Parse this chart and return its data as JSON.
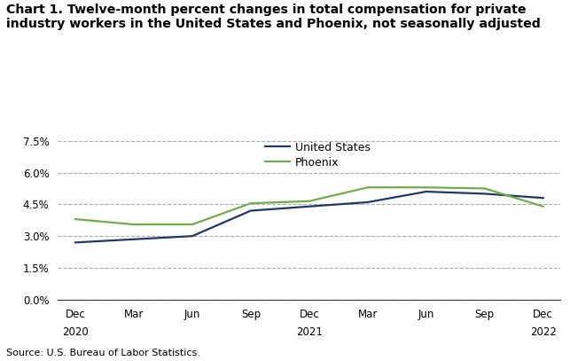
{
  "title": "Chart 1. Twelve-month percent changes in total compensation for private\nindustry workers in the United States and Phoenix, not seasonally adjusted",
  "x_tick_labels": [
    "Dec",
    "Mar",
    "Jun",
    "Sep",
    "Dec",
    "Mar",
    "Jun",
    "Sep",
    "Dec"
  ],
  "x_year_labels": {
    "0": "2020",
    "4": "2021",
    "8": "2022"
  },
  "x_positions": [
    0,
    1,
    2,
    3,
    4,
    5,
    6,
    7,
    8
  ],
  "us_values": [
    2.7,
    2.85,
    3.0,
    4.2,
    4.4,
    4.6,
    5.1,
    5.0,
    4.8
  ],
  "phoenix_values": [
    3.8,
    3.55,
    3.55,
    4.55,
    4.65,
    5.3,
    5.3,
    5.25,
    4.4
  ],
  "us_color": "#1f3864",
  "phoenix_color": "#70ad47",
  "us_label": "United States",
  "phoenix_label": "Phoenix",
  "ylim": [
    0.0,
    7.5
  ],
  "yticks": [
    0.0,
    1.5,
    3.0,
    4.5,
    6.0,
    7.5
  ],
  "ytick_labels": [
    "0.0%",
    "1.5%",
    "3.0%",
    "4.5%",
    "6.0%",
    "7.5%"
  ],
  "grid_color": "#aaaaaa",
  "source_text": "Source: U.S. Bureau of Labor Statistics.",
  "background_color": "#ffffff",
  "line_width": 1.6
}
